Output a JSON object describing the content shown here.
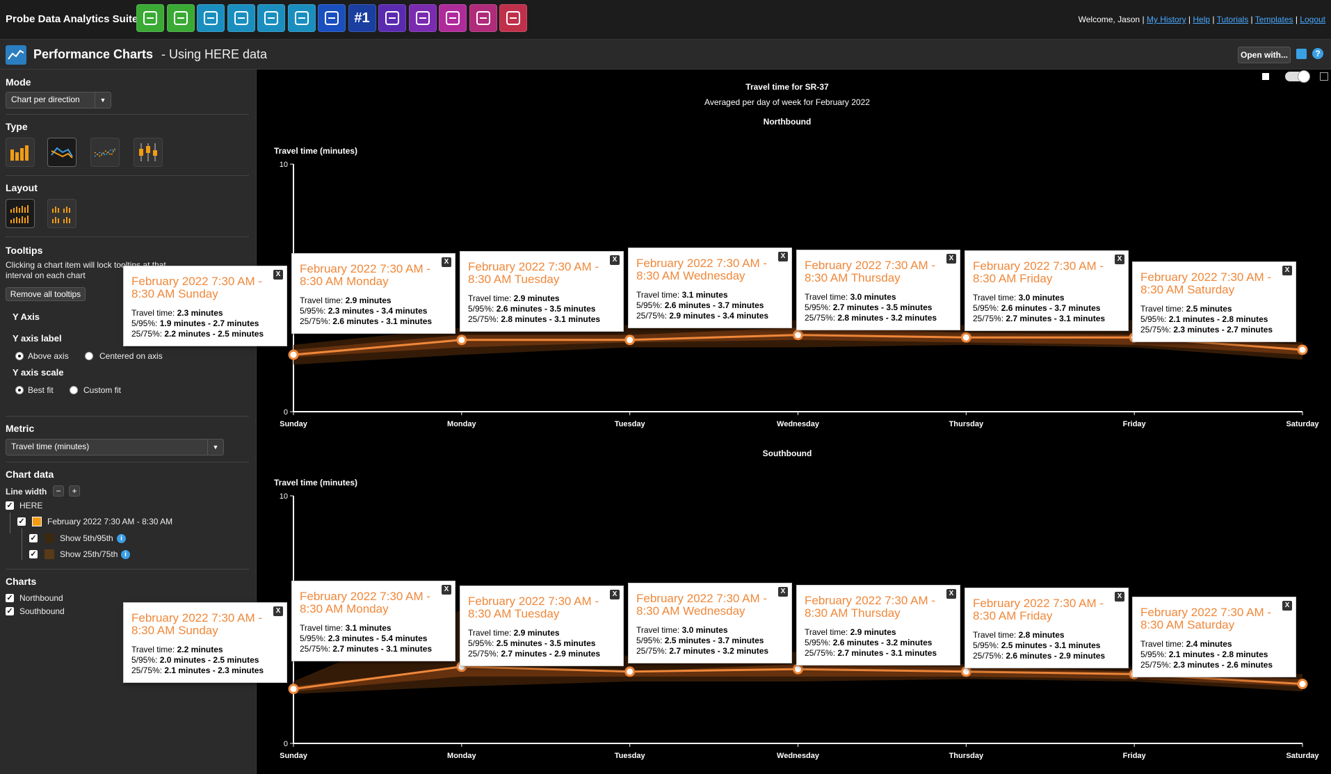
{
  "app": {
    "title": "Probe Data Analytics Suite",
    "welcome": "Welcome, Jason",
    "links": [
      "My History",
      "Help",
      "Tutorials",
      "Templates",
      "Logout"
    ],
    "toolbar_icons": [
      {
        "name": "magnifier-icon",
        "color": "#3aaa35"
      },
      {
        "name": "download-icon",
        "color": "#3aaa35"
      },
      {
        "name": "map-icon",
        "color": "#1a8fbf"
      },
      {
        "name": "road-icon",
        "color": "#1a8fbf"
      },
      {
        "name": "play-icon",
        "color": "#1a8fbf"
      },
      {
        "name": "performance-chart-icon",
        "color": "#1a8fbf"
      },
      {
        "name": "list-icon",
        "color": "#1a4fbf"
      },
      {
        "name": "rank-icon",
        "color": "#1a3fa0",
        "text": "#1"
      },
      {
        "name": "cost-icon",
        "color": "#5a2bb0"
      },
      {
        "name": "report-icon",
        "color": "#7a2bb0"
      },
      {
        "name": "scatter-icon",
        "color": "#b02b9a"
      },
      {
        "name": "bars-icon",
        "color": "#b02b7a"
      },
      {
        "name": "clock-icon",
        "color": "#c0304a"
      }
    ]
  },
  "header": {
    "title": "Performance Charts",
    "subtitle": "- Using HERE data",
    "open_with": "Open with..."
  },
  "sidebar": {
    "mode_title": "Mode",
    "mode_value": "Chart per direction",
    "type_title": "Type",
    "layout_title": "Layout",
    "tooltips_title": "Tooltips",
    "tooltips_desc": "Clicking a chart item will lock tooltips at that interval on each chart",
    "remove_tooltips": "Remove all tooltips",
    "y_axis_title": "Y Axis",
    "y_axis_label_title": "Y axis label",
    "y_label_opt1": "Above axis",
    "y_label_opt2": "Centered on axis",
    "y_axis_scale_title": "Y axis scale",
    "y_scale_opt1": "Best fit",
    "y_scale_opt2": "Custom fit",
    "metric_title": "Metric",
    "metric_value": "Travel time (minutes)",
    "chart_data_title": "Chart data",
    "line_width": "Line width",
    "source": "HERE",
    "series_label": "February 2022 7:30 AM - 8:30 AM",
    "show_5_95": "Show 5th/95th",
    "show_25_75": "Show 25th/75th",
    "charts_title": "Charts",
    "chart_nb": "Northbound",
    "chart_sb": "Southbound"
  },
  "chart_header": {
    "title": "Travel time for SR-37",
    "subtitle": "Averaged per day of week for February 2022"
  },
  "colors": {
    "line": "#f0883a",
    "band_outer": "#3a1e08",
    "band_inner": "#6a3410"
  },
  "chart_data": [
    {
      "type": "line",
      "title": "Northbound",
      "ylabel": "Travel time (minutes)",
      "ylim": [
        0,
        10
      ],
      "yticks": [
        "0",
        "10"
      ],
      "categories": [
        "Sunday",
        "Monday",
        "Tuesday",
        "Wednesday",
        "Thursday",
        "Friday",
        "Saturday"
      ],
      "series": [
        {
          "name": "February 2022 7:30 AM - 8:30 AM",
          "values": [
            2.3,
            2.9,
            2.9,
            3.1,
            3.0,
            3.0,
            2.5
          ],
          "p5": [
            1.9,
            2.3,
            2.6,
            2.6,
            2.7,
            2.6,
            2.1
          ],
          "p95": [
            2.7,
            3.4,
            3.5,
            3.7,
            3.5,
            3.7,
            2.8
          ],
          "p25": [
            2.2,
            2.6,
            2.8,
            2.9,
            2.8,
            2.7,
            2.3
          ],
          "p75": [
            2.5,
            3.1,
            3.1,
            3.4,
            3.2,
            3.1,
            2.7
          ]
        }
      ],
      "tooltips": [
        {
          "title": "February 2022 7:30 AM - 8:30 AM Sunday",
          "travel": "2.3 minutes",
          "r5_95": "1.9 minutes - 2.7 minutes",
          "r25_75": "2.2 minutes - 2.5 minutes"
        },
        {
          "title": "February 2022 7:30 AM - 8:30 AM Monday",
          "travel": "2.9 minutes",
          "r5_95": "2.3 minutes - 3.4 minutes",
          "r25_75": "2.6 minutes - 3.1 minutes"
        },
        {
          "title": "February 2022 7:30 AM - 8:30 AM Tuesday",
          "travel": "2.9 minutes",
          "r5_95": "2.6 minutes - 3.5 minutes",
          "r25_75": "2.8 minutes - 3.1 minutes"
        },
        {
          "title": "February 2022 7:30 AM - 8:30 AM Wednesday",
          "travel": "3.1 minutes",
          "r5_95": "2.6 minutes - 3.7 minutes",
          "r25_75": "2.9 minutes - 3.4 minutes"
        },
        {
          "title": "February 2022 7:30 AM - 8:30 AM Thursday",
          "travel": "3.0 minutes",
          "r5_95": "2.7 minutes - 3.5 minutes",
          "r25_75": "2.8 minutes - 3.2 minutes"
        },
        {
          "title": "February 2022 7:30 AM - 8:30 AM Friday",
          "travel": "3.0 minutes",
          "r5_95": "2.6 minutes - 3.7 minutes",
          "r25_75": "2.7 minutes - 3.1 minutes"
        },
        {
          "title": "February 2022 7:30 AM - 8:30 AM Saturday",
          "travel": "2.5 minutes",
          "r5_95": "2.1 minutes - 2.8 minutes",
          "r25_75": "2.3 minutes - 2.7 minutes"
        }
      ]
    },
    {
      "type": "line",
      "title": "Southbound",
      "ylabel": "Travel time (minutes)",
      "ylim": [
        0,
        10
      ],
      "yticks": [
        "0",
        "10"
      ],
      "categories": [
        "Sunday",
        "Monday",
        "Tuesday",
        "Wednesday",
        "Thursday",
        "Friday",
        "Saturday"
      ],
      "series": [
        {
          "name": "February 2022 7:30 AM - 8:30 AM",
          "values": [
            2.2,
            3.1,
            2.9,
            3.0,
            2.9,
            2.8,
            2.4
          ],
          "p5": [
            2.0,
            2.3,
            2.5,
            2.5,
            2.6,
            2.5,
            2.1
          ],
          "p95": [
            2.5,
            5.4,
            3.5,
            3.7,
            3.2,
            3.1,
            2.8
          ],
          "p25": [
            2.1,
            2.7,
            2.7,
            2.7,
            2.7,
            2.6,
            2.3
          ],
          "p75": [
            2.3,
            3.1,
            2.9,
            3.2,
            3.1,
            2.9,
            2.6
          ]
        }
      ],
      "tooltips": [
        {
          "title": "February 2022 7:30 AM - 8:30 AM Sunday",
          "travel": "2.2 minutes",
          "r5_95": "2.0 minutes - 2.5 minutes",
          "r25_75": "2.1 minutes - 2.3 minutes"
        },
        {
          "title": "February 2022 7:30 AM - 8:30 AM Monday",
          "travel": "3.1 minutes",
          "r5_95": "2.3 minutes - 5.4 minutes",
          "r25_75": "2.7 minutes - 3.1 minutes"
        },
        {
          "title": "February 2022 7:30 AM - 8:30 AM Tuesday",
          "travel": "2.9 minutes",
          "r5_95": "2.5 minutes - 3.5 minutes",
          "r25_75": "2.7 minutes - 2.9 minutes"
        },
        {
          "title": "February 2022 7:30 AM - 8:30 AM Wednesday",
          "travel": "3.0 minutes",
          "r5_95": "2.5 minutes - 3.7 minutes",
          "r25_75": "2.7 minutes - 3.2 minutes"
        },
        {
          "title": "February 2022 7:30 AM - 8:30 AM Thursday",
          "travel": "2.9 minutes",
          "r5_95": "2.6 minutes - 3.2 minutes",
          "r25_75": "2.7 minutes - 3.1 minutes"
        },
        {
          "title": "February 2022 7:30 AM - 8:30 AM Friday",
          "travel": "2.8 minutes",
          "r5_95": "2.5 minutes - 3.1 minutes",
          "r25_75": "2.6 minutes - 2.9 minutes"
        },
        {
          "title": "February 2022 7:30 AM - 8:30 AM Saturday",
          "travel": "2.4 minutes",
          "r5_95": "2.1 minutes - 2.8 minutes",
          "r25_75": "2.3 minutes - 2.6 minutes"
        }
      ]
    }
  ],
  "tooltip_labels": {
    "travel": "Travel time: ",
    "r5_95": "5/95%: ",
    "r25_75": "25/75%: ",
    "close": "X"
  }
}
